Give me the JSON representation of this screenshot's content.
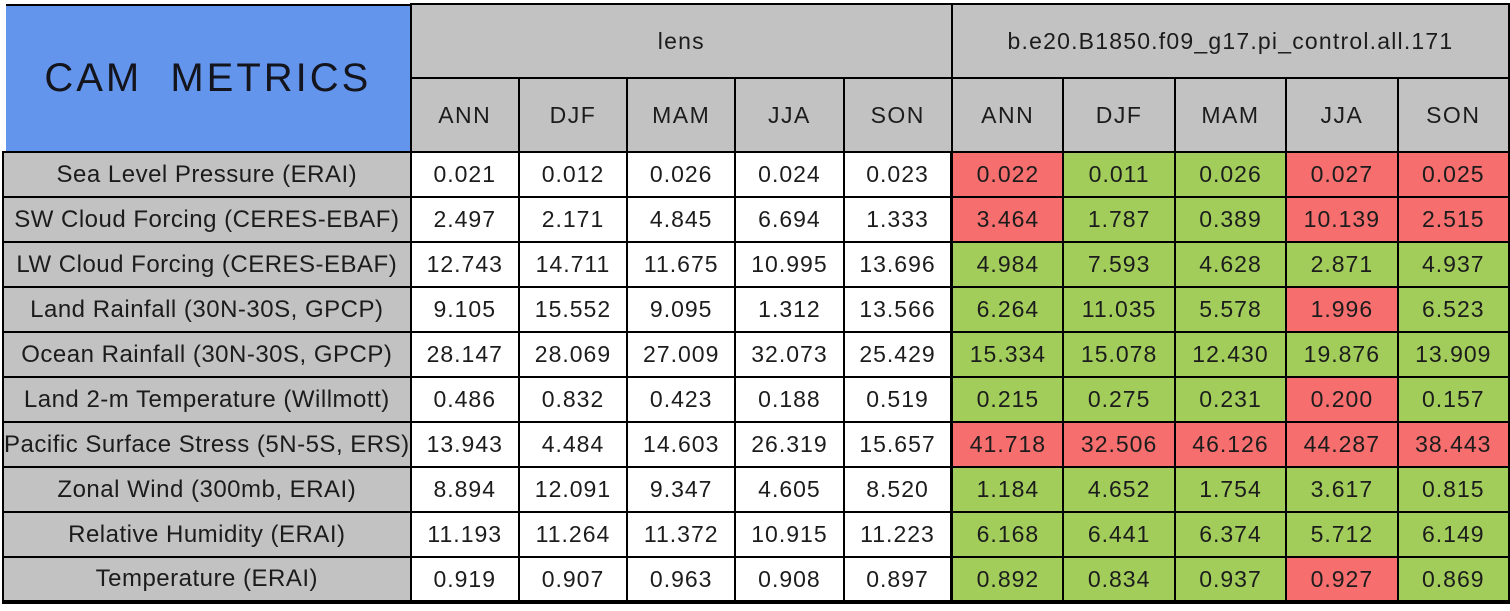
{
  "chart_data": {
    "type": "table",
    "title": "CAM METRICS",
    "column_groups": [
      {
        "label": "lens",
        "columns": [
          "ANN",
          "DJF",
          "MAM",
          "JJA",
          "SON"
        ]
      },
      {
        "label": "b.e20.B1850.f09_g17.pi_control.all.171",
        "columns": [
          "ANN",
          "DJF",
          "MAM",
          "JJA",
          "SON"
        ]
      }
    ],
    "rows": [
      {
        "label": "Sea Level Pressure (ERAI)",
        "lens": [
          "0.021",
          "0.012",
          "0.026",
          "0.024",
          "0.023"
        ],
        "control": [
          "0.022",
          "0.011",
          "0.026",
          "0.027",
          "0.025"
        ],
        "control_colors": [
          "worse",
          "better",
          "better",
          "worse",
          "worse"
        ]
      },
      {
        "label": "SW Cloud Forcing (CERES-EBAF)",
        "lens": [
          "2.497",
          "2.171",
          "4.845",
          "6.694",
          "1.333"
        ],
        "control": [
          "3.464",
          "1.787",
          "0.389",
          "10.139",
          "2.515"
        ],
        "control_colors": [
          "worse",
          "better",
          "better",
          "worse",
          "worse"
        ]
      },
      {
        "label": "LW Cloud Forcing (CERES-EBAF)",
        "lens": [
          "12.743",
          "14.711",
          "11.675",
          "10.995",
          "13.696"
        ],
        "control": [
          "4.984",
          "7.593",
          "4.628",
          "2.871",
          "4.937"
        ],
        "control_colors": [
          "better",
          "better",
          "better",
          "better",
          "better"
        ]
      },
      {
        "label": "Land Rainfall (30N-30S, GPCP)",
        "lens": [
          "9.105",
          "15.552",
          "9.095",
          "1.312",
          "13.566"
        ],
        "control": [
          "6.264",
          "11.035",
          "5.578",
          "1.996",
          "6.523"
        ],
        "control_colors": [
          "better",
          "better",
          "better",
          "worse",
          "better"
        ]
      },
      {
        "label": "Ocean Rainfall (30N-30S, GPCP)",
        "lens": [
          "28.147",
          "28.069",
          "27.009",
          "32.073",
          "25.429"
        ],
        "control": [
          "15.334",
          "15.078",
          "12.430",
          "19.876",
          "13.909"
        ],
        "control_colors": [
          "better",
          "better",
          "better",
          "better",
          "better"
        ]
      },
      {
        "label": "Land 2-m Temperature (Willmott)",
        "lens": [
          "0.486",
          "0.832",
          "0.423",
          "0.188",
          "0.519"
        ],
        "control": [
          "0.215",
          "0.275",
          "0.231",
          "0.200",
          "0.157"
        ],
        "control_colors": [
          "better",
          "better",
          "better",
          "worse",
          "better"
        ]
      },
      {
        "label": "Pacific Surface Stress (5N-5S, ERS)",
        "lens": [
          "13.943",
          "4.484",
          "14.603",
          "26.319",
          "15.657"
        ],
        "control": [
          "41.718",
          "32.506",
          "46.126",
          "44.287",
          "38.443"
        ],
        "control_colors": [
          "worse",
          "worse",
          "worse",
          "worse",
          "worse"
        ]
      },
      {
        "label": "Zonal Wind (300mb, ERAI)",
        "lens": [
          "8.894",
          "12.091",
          "9.347",
          "4.605",
          "8.520"
        ],
        "control": [
          "1.184",
          "4.652",
          "1.754",
          "3.617",
          "0.815"
        ],
        "control_colors": [
          "better",
          "better",
          "better",
          "better",
          "better"
        ]
      },
      {
        "label": "Relative Humidity (ERAI)",
        "lens": [
          "11.193",
          "11.264",
          "11.372",
          "10.915",
          "11.223"
        ],
        "control": [
          "6.168",
          "6.441",
          "6.374",
          "5.712",
          "6.149"
        ],
        "control_colors": [
          "better",
          "better",
          "better",
          "better",
          "better"
        ]
      },
      {
        "label": "Temperature (ERAI)",
        "lens": [
          "0.919",
          "0.907",
          "0.963",
          "0.908",
          "0.897"
        ],
        "control": [
          "0.892",
          "0.834",
          "0.937",
          "0.927",
          "0.869"
        ],
        "control_colors": [
          "better",
          "better",
          "better",
          "worse",
          "better"
        ]
      }
    ],
    "colors": {
      "better_bg": "#A2CD5A",
      "worse_bg": "#F76E6E",
      "header_bg": "#C2C2C2",
      "title_bg": "#6495ED",
      "lens_value_bg": "#FFFFFF",
      "border": "#000000"
    },
    "layout": {
      "legend": "none",
      "grid": "on",
      "header_rows": 2,
      "data_rows": 10,
      "data_columns": 10
    }
  }
}
